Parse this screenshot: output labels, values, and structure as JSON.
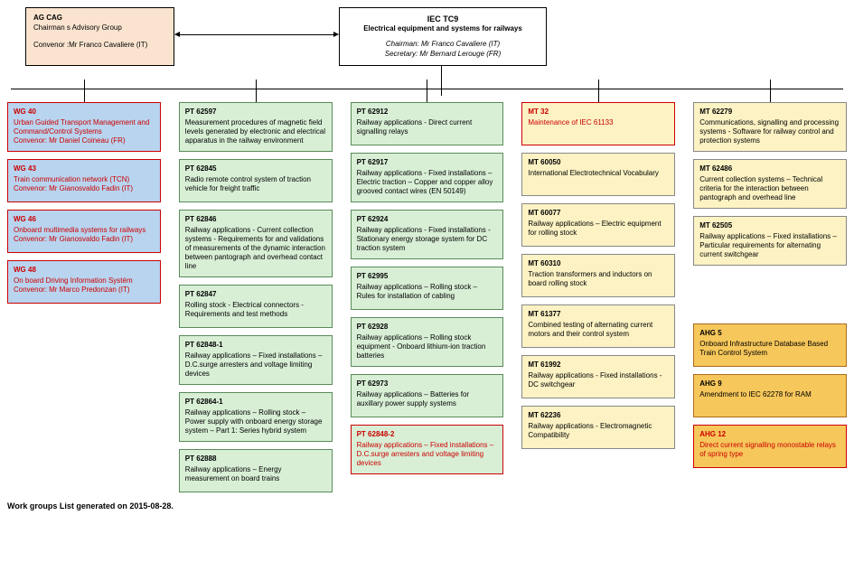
{
  "top": {
    "ag": {
      "line1": "AG CAG",
      "line2": "Chairman s Advisory Group",
      "line3": "Convenor :Mr Franco Cavaliere (IT)"
    },
    "iec": {
      "title": "IEC TC9",
      "subtitle": "Electrical equipment and systems for railways",
      "chair": "Chairman: Mr Franco Cavaliere (IT)",
      "sec": "Secretary: Mr Bernard Lerouge (FR)"
    }
  },
  "columns": [
    [
      {
        "type": "t-blue",
        "code": "WG 40",
        "text": "Urban Guided Transport Management and Command/Control Systems",
        "extra": "Convenor: Mr Daniel Coineau (FR)"
      },
      {
        "type": "t-blue",
        "code": "WG 43",
        "text": "Train communication network (TCN)",
        "extra": "Convenor: Mr Gianosvaldo Fadin (IT)"
      },
      {
        "type": "t-blue",
        "code": "WG 46",
        "text": "Onboard multimedia systems for railways",
        "extra": "Convenor: Mr Gianosvaldo Fadin (IT)"
      },
      {
        "type": "t-blue",
        "code": "WG 48",
        "text": "On board Driving Information Systém",
        "extra": "Convenor: Mr Marco Predonzan (IT)"
      }
    ],
    [
      {
        "type": "t-green",
        "code": "PT 62597",
        "text": "Measurement procedures of magnetic field levels generated by electronic and electrical apparatus in the railway environment"
      },
      {
        "type": "t-green",
        "code": "PT 62845",
        "text": "Radio remote control system of traction vehicle for freight traffic"
      },
      {
        "type": "t-green",
        "code": "PT 62846",
        "text": "Railway applications - Current collection systems - Requirements for and validations of measurements of the dynamic interaction between pantograph and overhead contact line"
      },
      {
        "type": "t-green",
        "code": "PT 62847",
        "text": "Rolling stock - Electrical connectors - Requirements and test methods"
      },
      {
        "type": "t-green",
        "code": "PT 62848-1",
        "text": "Railway applications – Fixed installations – D.C.surge arresters and voltage limiting devices"
      },
      {
        "type": "t-green",
        "code": "PT 62864-1",
        "text": "Railway applications – Rolling stock – Power supply with onboard energy storage system – Part 1: Series hybrid system"
      },
      {
        "type": "t-green",
        "code": "PT 62888",
        "text": "Railway applications – Energy measurement on board trains"
      }
    ],
    [
      {
        "type": "t-green",
        "code": "PT 62912",
        "text": "Railway applications - Direct current signalling relays"
      },
      {
        "type": "t-green",
        "code": "PT 62917",
        "text": "Railway applications - Fixed installations – Electric traction – Copper and copper alloy grooved contact wires (EN 50149)"
      },
      {
        "type": "t-green",
        "code": "PT 62924",
        "text": "Railway applications - Fixed installations - Stationary energy storage system for DC traction system"
      },
      {
        "type": "t-green",
        "code": "PT 62995",
        "text": "Railway applications – Rolling stock – Rules for installation of cabling"
      },
      {
        "type": "t-green",
        "code": "PT 62928",
        "text": "Railway applications – Rolling stock equipment - Onboard lithium-ion traction batteries"
      },
      {
        "type": "t-green",
        "code": "PT 62973",
        "text": "Railway applications – Batteries for auxillary power supply systems"
      },
      {
        "type": "t-green-red",
        "code": "PT 62848-2",
        "text": "Railway applications – Fixed installations – D.C.surge arresters and voltage limiting devices"
      }
    ],
    [
      {
        "type": "t-yellow-red",
        "code": "MT 32",
        "text": "Maintenance of IEC 61133"
      },
      {
        "type": "t-yellow",
        "code": "MT 60050",
        "text": "International Electrotechnical Vocabulary"
      },
      {
        "type": "t-yellow",
        "code": "MT 60077",
        "text": "Railway applications – Electric equipment for rolling stock"
      },
      {
        "type": "t-yellow",
        "code": "MT 60310",
        "text": "Traction transformers and inductors on board rolling stock"
      },
      {
        "type": "t-yellow",
        "code": "MT 61377",
        "text": "Combined testing of alternating current motors and their control system"
      },
      {
        "type": "t-yellow",
        "code": "MT 61992",
        "text": "Railway applications - Fixed installations - DC switchgear"
      },
      {
        "type": "t-yellow",
        "code": "MT 62236",
        "text": "Railway applications - Electromagnetic Compatibility"
      }
    ],
    [
      {
        "type": "t-yellow",
        "code": "MT 62279",
        "text": "Communications, signalling and processing systems - Software for railway control and protection systems"
      },
      {
        "type": "t-yellow",
        "code": "MT 62486",
        "text": "Current collection systems – Technical criteria for the interaction between pantograph and overhead line"
      },
      {
        "type": "t-yellow",
        "code": "MT 62505",
        "text": "Railway applications – Fixed installations – Particular requirements for alternating current switchgear"
      },
      {
        "type": "spacer"
      },
      {
        "type": "t-orange",
        "code": "AHG 5",
        "text": "Onboard Infrastructure Database Based Train Control System"
      },
      {
        "type": "t-orange",
        "code": "AHG 9",
        "text": "Amendment to IEC 62278 for RAM"
      },
      {
        "type": "t-orange-red",
        "code": "AHG 12",
        "text": "Direct current signalling monostable relays of spring type"
      }
    ]
  ],
  "footer": "Work groups List generated on 2015-08-28."
}
